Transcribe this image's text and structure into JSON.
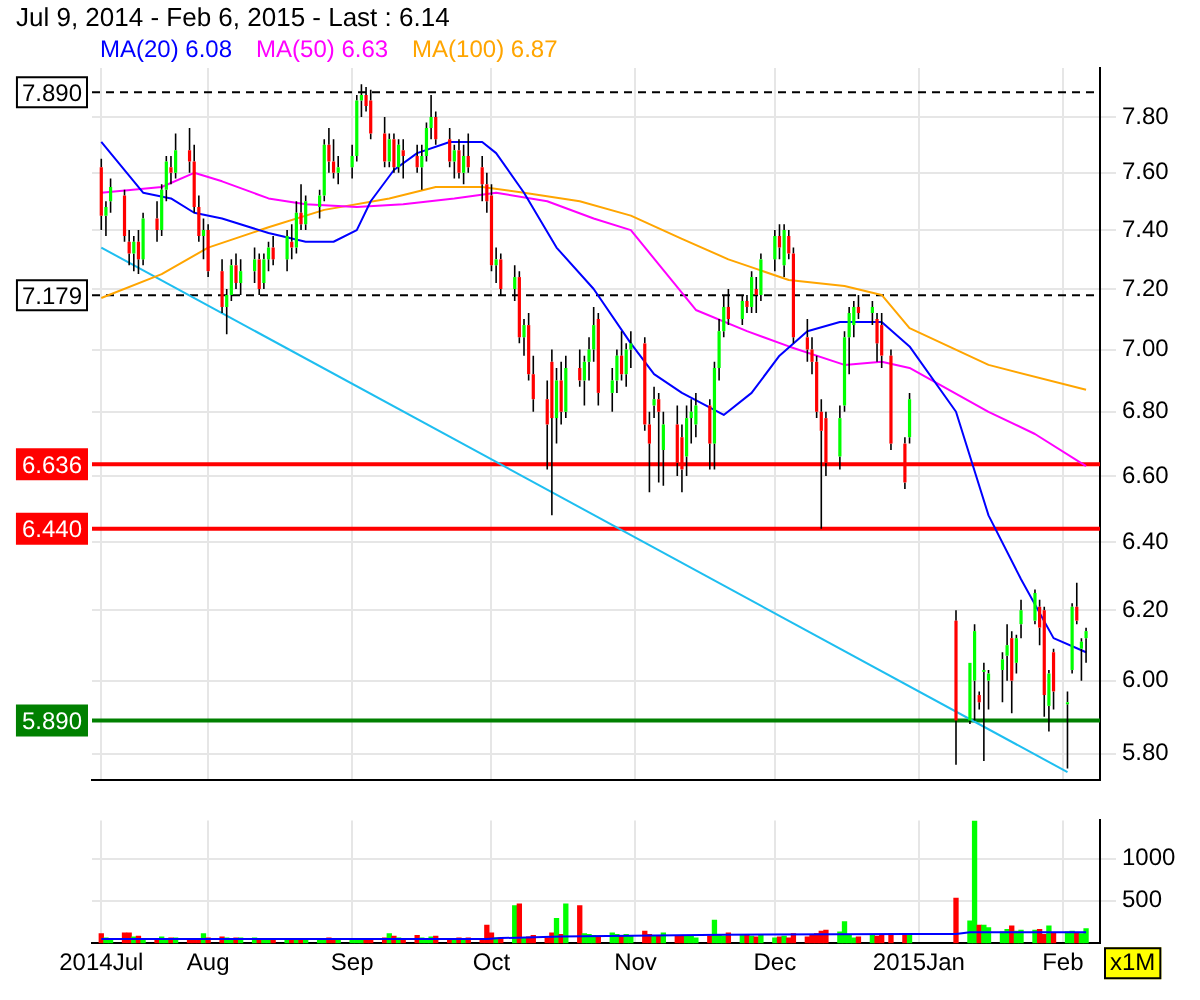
{
  "chart_data": [
    {
      "type": "candlestick",
      "title": "Jul 9, 2014 - Feb 6, 2015 - Last : 6.14",
      "log": true,
      "grid": true,
      "legend": "top left",
      "tick_labels": "y",
      "xlim": [
        "2014-07-07",
        "2015-02-09"
      ],
      "xticks": [
        {
          "value": "2014-07-09",
          "label": null
        },
        {
          "value": "2014-08-01",
          "label": null
        },
        {
          "value": "2014-09-01",
          "label": null
        },
        {
          "value": "2014-10-01",
          "label": null
        },
        {
          "value": "2014-11-01",
          "label": null
        },
        {
          "value": "2014-12-01",
          "label": null
        },
        {
          "value": "2015-01-01",
          "label": null
        },
        {
          "value": "2015-02-01",
          "label": null
        }
      ],
      "ylim": [
        5.73,
        7.98
      ],
      "yticks": [
        {
          "value": 5.8,
          "label": "5.80"
        },
        {
          "value": 6.0,
          "label": "6.00"
        },
        {
          "value": 6.2,
          "label": "6.20"
        },
        {
          "value": 6.4,
          "label": "6.40"
        },
        {
          "value": 6.6,
          "label": "6.60"
        },
        {
          "value": 6.8,
          "label": "6.80"
        },
        {
          "value": 7.0,
          "label": "7.00"
        },
        {
          "value": 7.2,
          "label": "7.20"
        },
        {
          "value": 7.4,
          "label": "7.40"
        },
        {
          "value": 7.6,
          "label": "7.60"
        },
        {
          "value": 7.8,
          "label": "7.80"
        }
      ],
      "x": [
        "2014-07-09",
        "2014-07-10",
        "2014-07-11",
        "2014-07-14",
        "2014-07-15",
        "2014-07-16",
        "2014-07-17",
        "2014-07-18",
        "2014-07-21",
        "2014-07-22",
        "2014-07-23",
        "2014-07-24",
        "2014-07-25",
        "2014-07-28",
        "2014-07-29",
        "2014-07-30",
        "2014-07-31",
        "2014-08-01",
        "2014-08-04",
        "2014-08-05",
        "2014-08-06",
        "2014-08-07",
        "2014-08-08",
        "2014-08-11",
        "2014-08-12",
        "2014-08-13",
        "2014-08-14",
        "2014-08-15",
        "2014-08-18",
        "2014-08-19",
        "2014-08-20",
        "2014-08-21",
        "2014-08-22",
        "2014-08-25",
        "2014-08-26",
        "2014-08-27",
        "2014-08-28",
        "2014-08-29",
        "2014-09-01",
        "2014-09-02",
        "2014-09-03",
        "2014-09-04",
        "2014-09-05",
        "2014-09-08",
        "2014-09-09",
        "2014-09-10",
        "2014-09-11",
        "2014-09-12",
        "2014-09-15",
        "2014-09-16",
        "2014-09-17",
        "2014-09-18",
        "2014-09-19",
        "2014-09-22",
        "2014-09-23",
        "2014-09-24",
        "2014-09-25",
        "2014-09-26",
        "2014-09-29",
        "2014-09-30",
        "2014-10-01",
        "2014-10-02",
        "2014-10-03",
        "2014-10-06",
        "2014-10-07",
        "2014-10-08",
        "2014-10-09",
        "2014-10-10",
        "2014-10-13",
        "2014-10-14",
        "2014-10-15",
        "2014-10-16",
        "2014-10-17",
        "2014-10-20",
        "2014-10-21",
        "2014-10-22",
        "2014-10-23",
        "2014-10-24",
        "2014-10-27",
        "2014-10-28",
        "2014-10-29",
        "2014-10-30",
        "2014-10-31",
        "2014-11-03",
        "2014-11-04",
        "2014-11-05",
        "2014-11-06",
        "2014-11-07",
        "2014-11-10",
        "2014-11-11",
        "2014-11-12",
        "2014-11-13",
        "2014-11-14",
        "2014-11-17",
        "2014-11-18",
        "2014-11-19",
        "2014-11-20",
        "2014-11-21",
        "2014-11-24",
        "2014-11-25",
        "2014-11-26",
        "2014-11-27",
        "2014-11-28",
        "2014-12-01",
        "2014-12-02",
        "2014-12-03",
        "2014-12-04",
        "2014-12-05",
        "2014-12-08",
        "2014-12-09",
        "2014-12-10",
        "2014-12-11",
        "2014-12-12",
        "2014-12-15",
        "2014-12-16",
        "2014-12-17",
        "2014-12-18",
        "2014-12-19",
        "2014-12-22",
        "2014-12-23",
        "2014-12-24",
        "2014-12-26",
        "2014-12-29",
        "2014-12-30",
        "2015-01-09",
        "2015-01-12",
        "2015-01-13",
        "2015-01-14",
        "2015-01-15",
        "2015-01-16",
        "2015-01-19",
        "2015-01-20",
        "2015-01-21",
        "2015-01-22",
        "2015-01-23",
        "2015-01-26",
        "2015-01-27",
        "2015-01-28",
        "2015-01-29",
        "2015-01-30",
        "2015-02-02",
        "2015-02-03",
        "2015-02-04",
        "2015-02-05",
        "2015-02-06"
      ],
      "series": [
        {
          "ohlc": [
            [
              7.62,
              7.65,
              7.4,
              7.45
            ],
            [
              7.45,
              7.5,
              7.38,
              7.48
            ],
            [
              7.5,
              7.58,
              7.46,
              7.55
            ],
            [
              7.52,
              7.54,
              7.36,
              7.38
            ],
            [
              7.36,
              7.4,
              7.28,
              7.32
            ],
            [
              7.32,
              7.38,
              7.26,
              7.36
            ],
            [
              7.36,
              7.4,
              7.25,
              7.3
            ],
            [
              7.3,
              7.46,
              7.28,
              7.44
            ],
            [
              7.44,
              7.5,
              7.36,
              7.4
            ],
            [
              7.4,
              7.56,
              7.38,
              7.54
            ],
            [
              7.54,
              7.66,
              7.5,
              7.64
            ],
            [
              7.62,
              7.66,
              7.56,
              7.6
            ],
            [
              7.6,
              7.74,
              7.58,
              7.68
            ],
            [
              7.68,
              7.76,
              7.6,
              7.64
            ],
            [
              7.64,
              7.7,
              7.46,
              7.48
            ],
            [
              7.48,
              7.52,
              7.36,
              7.38
            ],
            [
              7.38,
              7.44,
              7.3,
              7.4
            ],
            [
              7.4,
              7.42,
              7.24,
              7.26
            ],
            [
              7.26,
              7.3,
              7.12,
              7.14
            ],
            [
              7.14,
              7.2,
              7.05,
              7.18
            ],
            [
              7.18,
              7.3,
              7.16,
              7.28
            ],
            [
              7.28,
              7.32,
              7.2,
              7.22
            ],
            [
              7.22,
              7.3,
              7.18,
              7.26
            ],
            [
              7.26,
              7.34,
              7.22,
              7.3
            ],
            [
              7.3,
              7.32,
              7.18,
              7.2
            ],
            [
              7.22,
              7.32,
              7.2,
              7.3
            ],
            [
              7.3,
              7.36,
              7.26,
              7.34
            ],
            [
              7.34,
              7.38,
              7.28,
              7.3
            ],
            [
              7.3,
              7.4,
              7.26,
              7.38
            ],
            [
              7.36,
              7.42,
              7.3,
              7.34
            ],
            [
              7.34,
              7.5,
              7.32,
              7.46
            ],
            [
              7.46,
              7.56,
              7.4,
              7.42
            ],
            [
              7.42,
              7.52,
              7.4,
              7.5
            ],
            [
              7.48,
              7.54,
              7.44,
              7.52
            ],
            [
              7.52,
              7.72,
              7.5,
              7.7
            ],
            [
              7.7,
              7.76,
              7.6,
              7.64
            ],
            [
              7.64,
              7.72,
              7.58,
              7.6
            ],
            [
              7.6,
              7.66,
              7.56,
              7.62
            ],
            [
              7.62,
              7.7,
              7.58,
              7.66
            ],
            [
              7.66,
              7.88,
              7.64,
              7.86
            ],
            [
              7.86,
              7.92,
              7.8,
              7.88
            ],
            [
              7.88,
              7.91,
              7.82,
              7.84
            ],
            [
              7.86,
              7.9,
              7.72,
              7.74
            ],
            [
              7.74,
              7.8,
              7.62,
              7.64
            ],
            [
              7.64,
              7.74,
              7.62,
              7.72
            ],
            [
              7.72,
              7.74,
              7.6,
              7.62
            ],
            [
              7.62,
              7.72,
              7.6,
              7.7
            ],
            [
              7.68,
              7.72,
              7.58,
              7.66
            ],
            [
              7.66,
              7.7,
              7.6,
              7.62
            ],
            [
              7.62,
              7.7,
              7.54,
              7.66
            ],
            [
              7.66,
              7.78,
              7.64,
              7.76
            ],
            [
              7.76,
              7.88,
              7.72,
              7.8
            ],
            [
              7.8,
              7.82,
              7.7,
              7.72
            ],
            [
              7.72,
              7.76,
              7.62,
              7.64
            ],
            [
              7.64,
              7.7,
              7.58,
              7.68
            ],
            [
              7.68,
              7.72,
              7.58,
              7.6
            ],
            [
              7.6,
              7.7,
              7.56,
              7.66
            ],
            [
              7.66,
              7.74,
              7.6,
              7.62
            ],
            [
              7.62,
              7.66,
              7.5,
              7.56
            ],
            [
              7.56,
              7.6,
              7.46,
              7.5
            ],
            [
              7.52,
              7.56,
              7.26,
              7.28
            ],
            [
              7.28,
              7.34,
              7.22,
              7.3
            ],
            [
              7.3,
              7.32,
              7.18,
              7.2
            ],
            [
              7.2,
              7.28,
              7.16,
              7.24
            ],
            [
              7.24,
              7.26,
              7.02,
              7.04
            ],
            [
              7.04,
              7.1,
              6.98,
              7.08
            ],
            [
              7.08,
              7.12,
              6.9,
              6.92
            ],
            [
              6.92,
              6.98,
              6.8,
              6.84
            ],
            [
              6.84,
              6.9,
              6.62,
              6.76
            ],
            [
              6.96,
              7.0,
              6.48,
              6.78
            ],
            [
              6.78,
              6.94,
              6.7,
              6.9
            ],
            [
              6.9,
              6.96,
              6.76,
              6.8
            ],
            [
              6.8,
              6.98,
              6.78,
              6.94
            ],
            [
              6.94,
              7.0,
              6.88,
              6.9
            ],
            [
              6.9,
              6.98,
              6.82,
              6.96
            ],
            [
              6.96,
              7.04,
              6.9,
              7.0
            ],
            [
              7.0,
              7.14,
              6.96,
              7.08
            ],
            [
              7.1,
              7.12,
              6.82,
              6.86
            ],
            [
              6.86,
              6.94,
              6.8,
              6.9
            ],
            [
              6.9,
              7.0,
              6.86,
              6.98
            ],
            [
              6.98,
              7.06,
              6.9,
              6.92
            ],
            [
              6.92,
              7.02,
              6.88,
              7.0
            ],
            [
              7.0,
              7.06,
              6.94,
              7.02
            ],
            [
              7.02,
              7.04,
              6.74,
              6.76
            ],
            [
              6.76,
              6.8,
              6.55,
              6.7
            ],
            [
              6.82,
              6.88,
              6.78,
              6.84
            ],
            [
              6.84,
              6.86,
              6.58,
              6.8
            ],
            [
              6.68,
              6.8,
              6.57,
              6.76
            ],
            [
              6.76,
              6.82,
              6.6,
              6.64
            ],
            [
              6.72,
              6.76,
              6.55,
              6.62
            ],
            [
              6.66,
              6.82,
              6.6,
              6.78
            ],
            [
              6.78,
              6.84,
              6.7,
              6.8
            ],
            [
              6.76,
              6.86,
              6.72,
              6.82
            ],
            [
              6.82,
              6.84,
              6.62,
              6.7
            ],
            [
              6.7,
              6.96,
              6.62,
              6.94
            ],
            [
              6.94,
              7.1,
              6.9,
              7.06
            ],
            [
              7.06,
              7.18,
              7.04,
              7.14
            ],
            [
              7.14,
              7.2,
              7.08,
              7.1
            ],
            [
              7.1,
              7.18,
              7.08,
              7.16
            ],
            [
              7.16,
              7.18,
              7.12,
              7.14
            ],
            [
              7.14,
              7.26,
              7.12,
              7.24
            ],
            [
              7.2,
              7.24,
              7.12,
              7.18
            ],
            [
              7.18,
              7.32,
              7.16,
              7.3
            ],
            [
              7.3,
              7.4,
              7.26,
              7.38
            ],
            [
              7.38,
              7.42,
              7.3,
              7.34
            ],
            [
              7.28,
              7.42,
              7.24,
              7.4
            ],
            [
              7.38,
              7.4,
              7.3,
              7.32
            ],
            [
              7.32,
              7.34,
              7.02,
              7.04
            ],
            [
              7.04,
              7.1,
              6.96,
              7.0
            ],
            [
              7.0,
              7.04,
              6.92,
              6.96
            ],
            [
              6.96,
              6.98,
              6.78,
              6.8
            ],
            [
              6.8,
              6.84,
              6.44,
              6.74
            ],
            [
              6.78,
              6.8,
              6.6,
              6.64
            ],
            [
              6.66,
              6.82,
              6.62,
              6.78
            ],
            [
              6.82,
              7.06,
              6.8,
              7.04
            ],
            [
              7.04,
              7.14,
              6.92,
              7.12
            ],
            [
              7.08,
              7.16,
              7.04,
              7.14
            ],
            [
              7.14,
              7.18,
              7.1,
              7.12
            ],
            [
              7.12,
              7.16,
              7.08,
              7.14
            ],
            [
              7.1,
              7.12,
              6.96,
              7.02
            ],
            [
              7.08,
              7.12,
              6.94,
              6.98
            ],
            [
              6.98,
              7.0,
              6.68,
              6.7
            ],
            [
              6.7,
              6.72,
              6.56,
              6.58
            ],
            [
              6.72,
              6.86,
              6.7,
              6.84
            ],
            [
              6.17,
              6.2,
              5.77,
              5.89
            ],
            [
              5.89,
              6.05,
              5.88,
              6.05
            ],
            [
              6.0,
              6.16,
              5.89,
              6.14
            ],
            [
              5.96,
              5.97,
              5.92,
              5.94
            ],
            [
              6.03,
              6.05,
              5.78,
              6.03
            ],
            [
              6.0,
              6.03,
              5.92,
              6.02
            ],
            [
              6.03,
              6.08,
              5.94,
              6.06
            ],
            [
              6.07,
              6.16,
              6.0,
              6.1
            ],
            [
              6.12,
              6.14,
              5.91,
              6.0
            ],
            [
              6.05,
              6.13,
              6.02,
              6.12
            ],
            [
              6.16,
              6.23,
              6.12,
              6.2
            ],
            [
              6.17,
              6.26,
              6.16,
              6.25
            ],
            [
              6.21,
              6.23,
              6.1,
              6.15
            ],
            [
              6.2,
              6.21,
              5.9,
              5.96
            ],
            [
              5.93,
              6.03,
              5.86,
              6.02
            ],
            [
              6.08,
              6.09,
              5.92,
              5.97
            ],
            [
              5.94,
              5.97,
              5.76,
              5.94
            ],
            [
              6.03,
              6.22,
              6.02,
              6.21
            ],
            [
              6.21,
              6.28,
              6.16,
              6.17
            ],
            [
              6.09,
              6.12,
              6.0,
              6.11
            ],
            [
              6.12,
              6.15,
              6.05,
              6.14
            ]
          ],
          "colors": [
            "#ff0000",
            "#00ff00",
            "#00ff00",
            "#ff0000",
            "#ff0000",
            "#00ff00",
            "#ff0000",
            "#00ff00",
            "#ff0000",
            "#00ff00",
            "#00ff00",
            "#ff0000",
            "#00ff00",
            "#ff0000",
            "#ff0000",
            "#ff0000",
            "#00ff00",
            "#ff0000",
            "#ff0000",
            "#00ff00",
            "#00ff00",
            "#ff0000",
            "#00ff00",
            "#00ff00",
            "#ff0000",
            "#00ff00",
            "#00ff00",
            "#ff0000",
            "#00ff00",
            "#ff0000",
            "#00ff00",
            "#ff0000",
            "#00ff00",
            "#00ff00",
            "#00ff00",
            "#ff0000",
            "#ff0000",
            "#00ff00",
            "#00ff00",
            "#00ff00",
            "#00ff00",
            "#ff0000",
            "#ff0000",
            "#ff0000",
            "#00ff00",
            "#ff0000",
            "#00ff00",
            "#ff0000",
            "#ff0000",
            "#00ff00",
            "#00ff00",
            "#00ff00",
            "#ff0000",
            "#ff0000",
            "#00ff00",
            "#ff0000",
            "#00ff00",
            "#ff0000",
            "#ff0000",
            "#ff0000",
            "#ff0000",
            "#00ff00",
            "#ff0000",
            "#00ff00",
            "#ff0000",
            "#00ff00",
            "#ff0000",
            "#ff0000",
            "#ff0000",
            "#ff0000",
            "#00ff00",
            "#ff0000",
            "#00ff00",
            "#ff0000",
            "#00ff00",
            "#00ff00",
            "#00ff00",
            "#ff0000",
            "#00ff00",
            "#00ff00",
            "#ff0000",
            "#00ff00",
            "#00ff00",
            "#ff0000",
            "#ff0000",
            "#00ff00",
            "#ff0000",
            "#00ff00",
            "#ff0000",
            "#ff0000",
            "#00ff00",
            "#00ff00",
            "#00ff00",
            "#ff0000",
            "#00ff00",
            "#00ff00",
            "#00ff00",
            "#ff0000",
            "#00ff00",
            "#ff0000",
            "#00ff00",
            "#ff0000",
            "#00ff00",
            "#00ff00",
            "#ff0000",
            "#00ff00",
            "#ff0000",
            "#ff0000",
            "#ff0000",
            "#ff0000",
            "#ff0000",
            "#ff0000",
            "#ff0000",
            "#00ff00",
            "#00ff00",
            "#00ff00",
            "#00ff00",
            "#ff0000",
            "#00ff00",
            "#ff0000",
            "#ff0000",
            "#ff0000",
            "#ff0000",
            "#00ff00",
            "#ff0000",
            "#00ff00",
            "#00ff00",
            "#ff0000",
            "#00ff00",
            "#00ff00",
            "#00ff00",
            "#00ff00",
            "#ff0000",
            "#00ff00",
            "#00ff00",
            "#00ff00",
            "#ff0000",
            "#ff0000",
            "#00ff00",
            "#ff0000",
            "#00ff00",
            "#00ff00",
            "#ff0000",
            "#00ff00",
            "#00ff00"
          ]
        },
        {
          "type": "line",
          "name": "MA(20) 6.08",
          "color": "#0000ff",
          "x": [
            "2014-07-09",
            "2014-07-18",
            "2014-07-24",
            "2014-07-29",
            "2014-08-04",
            "2014-08-14",
            "2014-08-22",
            "2014-08-28",
            "2014-09-02",
            "2014-09-05",
            "2014-09-10",
            "2014-09-15",
            "2014-09-22",
            "2014-09-29",
            "2014-10-02",
            "2014-10-08",
            "2014-10-15",
            "2014-10-23",
            "2014-10-31",
            "2014-11-05",
            "2014-11-11",
            "2014-11-20",
            "2014-11-26",
            "2014-12-02",
            "2014-12-08",
            "2014-12-15",
            "2014-12-24",
            "2014-12-30",
            "2015-01-09",
            "2015-01-16",
            "2015-01-23",
            "2015-01-30",
            "2015-02-06"
          ],
          "values": [
            7.71,
            7.53,
            7.51,
            7.46,
            7.44,
            7.39,
            7.36,
            7.36,
            7.4,
            7.5,
            7.61,
            7.67,
            7.71,
            7.71,
            7.67,
            7.53,
            7.34,
            7.2,
            7.02,
            6.92,
            6.86,
            6.79,
            6.86,
            6.98,
            7.06,
            7.09,
            7.09,
            7.01,
            6.8,
            6.48,
            6.29,
            6.12,
            6.08
          ]
        },
        {
          "type": "line",
          "name": "MA(50) 6.63",
          "color": "#ff00ff",
          "x": [
            "2014-07-09",
            "2014-07-22",
            "2014-07-29",
            "2014-08-04",
            "2014-08-14",
            "2014-08-22",
            "2014-09-02",
            "2014-09-12",
            "2014-09-23",
            "2014-10-02",
            "2014-10-13",
            "2014-10-23",
            "2014-10-31",
            "2014-11-14",
            "2014-11-25",
            "2014-12-04",
            "2014-12-16",
            "2014-12-24",
            "2014-12-30",
            "2015-01-16",
            "2015-01-26",
            "2015-02-06"
          ],
          "values": [
            7.53,
            7.55,
            7.6,
            7.57,
            7.51,
            7.49,
            7.48,
            7.49,
            7.51,
            7.53,
            7.5,
            7.44,
            7.4,
            7.13,
            7.06,
            7.01,
            6.95,
            6.96,
            6.94,
            6.8,
            6.73,
            6.63
          ]
        },
        {
          "type": "line",
          "name": "MA(100) 6.87",
          "color": "#ffa500",
          "x": [
            "2014-07-09",
            "2014-07-22",
            "2014-08-01",
            "2014-08-14",
            "2014-08-26",
            "2014-09-09",
            "2014-09-19",
            "2014-09-29",
            "2014-10-08",
            "2014-10-20",
            "2014-10-31",
            "2014-11-11",
            "2014-11-21",
            "2014-12-04",
            "2014-12-16",
            "2014-12-24",
            "2014-12-30",
            "2015-01-16",
            "2015-02-06"
          ],
          "values": [
            7.17,
            7.25,
            7.34,
            7.41,
            7.47,
            7.51,
            7.55,
            7.55,
            7.53,
            7.5,
            7.45,
            7.37,
            7.3,
            7.23,
            7.21,
            7.18,
            7.07,
            6.95,
            6.87
          ]
        },
        {
          "type": "line",
          "color": "#1ebef0",
          "x": [
            "2014-07-09",
            "2015-02-02"
          ],
          "values": [
            7.34,
            5.75
          ]
        }
      ],
      "ref_lines": [
        {
          "axis": "y",
          "value": 7.89,
          "label": "7.890",
          "color": "#000000",
          "line_style": "dashed"
        },
        {
          "axis": "y",
          "value": 7.179,
          "label": "7.179",
          "color": "#000000",
          "line_style": "dashed"
        },
        {
          "axis": "y",
          "value": 6.636,
          "label": "6.636",
          "color": "#ff0000",
          "line_style": "solid"
        },
        {
          "axis": "y",
          "value": 6.44,
          "label": "6.440",
          "color": "#ff0000",
          "line_style": "solid"
        },
        {
          "axis": "y",
          "value": 5.89,
          "label": "5.890",
          "color": "#008000",
          "line_style": "solid"
        }
      ]
    },
    {
      "type": "bar",
      "grid": true,
      "ylabel": "x1M",
      "xlim": [
        "2014-07-07",
        "2015-02-09"
      ],
      "xticks": [
        {
          "value": "2014-07-09",
          "label": "2014Jul"
        },
        {
          "value": "2014-08-01",
          "label": "Aug"
        },
        {
          "value": "2014-09-01",
          "label": "Sep"
        },
        {
          "value": "2014-10-01",
          "label": "Oct"
        },
        {
          "value": "2014-11-01",
          "label": "Nov"
        },
        {
          "value": "2014-12-01",
          "label": "Dec"
        },
        {
          "value": "2015-01-01",
          "label": "2015Jan"
        },
        {
          "value": "2015-02-01",
          "label": "Feb"
        }
      ],
      "ylim": [
        0,
        1450
      ],
      "yticks": [
        500,
        1000
      ],
      "x": [
        "2014-07-09",
        "2014-07-10",
        "2014-07-11",
        "2014-07-14",
        "2014-07-15",
        "2014-07-16",
        "2014-07-17",
        "2014-07-18",
        "2014-07-21",
        "2014-07-22",
        "2014-07-23",
        "2014-07-24",
        "2014-07-25",
        "2014-07-28",
        "2014-07-29",
        "2014-07-30",
        "2014-07-31",
        "2014-08-01",
        "2014-08-04",
        "2014-08-05",
        "2014-08-06",
        "2014-08-07",
        "2014-08-08",
        "2014-08-11",
        "2014-08-12",
        "2014-08-13",
        "2014-08-14",
        "2014-08-15",
        "2014-08-18",
        "2014-08-19",
        "2014-08-20",
        "2014-08-21",
        "2014-08-22",
        "2014-08-25",
        "2014-08-26",
        "2014-08-27",
        "2014-08-28",
        "2014-08-29",
        "2014-09-01",
        "2014-09-02",
        "2014-09-03",
        "2014-09-04",
        "2014-09-05",
        "2014-09-08",
        "2014-09-09",
        "2014-09-10",
        "2014-09-11",
        "2014-09-12",
        "2014-09-15",
        "2014-09-16",
        "2014-09-17",
        "2014-09-18",
        "2014-09-19",
        "2014-09-22",
        "2014-09-23",
        "2014-09-24",
        "2014-09-25",
        "2014-09-26",
        "2014-09-29",
        "2014-09-30",
        "2014-10-01",
        "2014-10-02",
        "2014-10-03",
        "2014-10-06",
        "2014-10-07",
        "2014-10-08",
        "2014-10-09",
        "2014-10-10",
        "2014-10-13",
        "2014-10-14",
        "2014-10-15",
        "2014-10-16",
        "2014-10-17",
        "2014-10-20",
        "2014-10-21",
        "2014-10-22",
        "2014-10-23",
        "2014-10-24",
        "2014-10-27",
        "2014-10-28",
        "2014-10-29",
        "2014-10-30",
        "2014-10-31",
        "2014-11-03",
        "2014-11-04",
        "2014-11-05",
        "2014-11-06",
        "2014-11-07",
        "2014-11-10",
        "2014-11-11",
        "2014-11-12",
        "2014-11-13",
        "2014-11-14",
        "2014-11-17",
        "2014-11-18",
        "2014-11-19",
        "2014-11-20",
        "2014-11-21",
        "2014-11-24",
        "2014-11-25",
        "2014-11-26",
        "2014-11-27",
        "2014-11-28",
        "2014-12-01",
        "2014-12-02",
        "2014-12-03",
        "2014-12-04",
        "2014-12-05",
        "2014-12-08",
        "2014-12-09",
        "2014-12-10",
        "2014-12-11",
        "2014-12-12",
        "2014-12-15",
        "2014-12-16",
        "2014-12-17",
        "2014-12-18",
        "2014-12-19",
        "2014-12-22",
        "2014-12-23",
        "2014-12-24",
        "2014-12-26",
        "2014-12-29",
        "2014-12-30",
        "2015-01-09",
        "2015-01-12",
        "2015-01-13",
        "2015-01-14",
        "2015-01-15",
        "2015-01-16",
        "2015-01-19",
        "2015-01-20",
        "2015-01-21",
        "2015-01-22",
        "2015-01-23",
        "2015-01-26",
        "2015-01-27",
        "2015-01-28",
        "2015-01-29",
        "2015-01-30",
        "2015-02-02",
        "2015-02-03",
        "2015-02-04",
        "2015-02-05",
        "2015-02-06"
      ],
      "series": [
        {
          "values": [
            110,
            60,
            50,
            120,
            120,
            70,
            80,
            50,
            50,
            70,
            50,
            60,
            60,
            40,
            40,
            50,
            110,
            60,
            70,
            60,
            50,
            60,
            60,
            60,
            50,
            50,
            40,
            40,
            40,
            40,
            50,
            50,
            50,
            40,
            40,
            60,
            50,
            40,
            40,
            40,
            50,
            40,
            40,
            60,
            110,
            80,
            60,
            50,
            90,
            60,
            40,
            70,
            80,
            50,
            50,
            60,
            40,
            60,
            50,
            210,
            120,
            60,
            60,
            440,
            460,
            60,
            70,
            90,
            60,
            120,
            290,
            100,
            460,
            440,
            110,
            100,
            90,
            80,
            120,
            100,
            80,
            100,
            90,
            140,
            100,
            90,
            90,
            120,
            80,
            90,
            90,
            80,
            60,
            80,
            270,
            100,
            80,
            120,
            100,
            90,
            80,
            70,
            90,
            60,
            70,
            80,
            60,
            110,
            70,
            90,
            110,
            140,
            150,
            130,
            250,
            100,
            60,
            70,
            90,
            80,
            100,
            110,
            90,
            100,
            530,
            260,
            1440,
            210,
            210,
            180,
            130,
            160,
            200,
            140,
            150,
            150,
            160,
            100,
            200,
            120,
            130,
            140,
            120,
            110,
            170
          ],
          "colors": [
            "#ff0000",
            "#00ff00",
            "#00ff00",
            "#ff0000",
            "#ff0000",
            "#00ff00",
            "#ff0000",
            "#00ff00",
            "#ff0000",
            "#00ff00",
            "#00ff00",
            "#ff0000",
            "#00ff00",
            "#ff0000",
            "#ff0000",
            "#ff0000",
            "#00ff00",
            "#ff0000",
            "#ff0000",
            "#00ff00",
            "#00ff00",
            "#ff0000",
            "#00ff00",
            "#00ff00",
            "#ff0000",
            "#00ff00",
            "#00ff00",
            "#ff0000",
            "#00ff00",
            "#ff0000",
            "#00ff00",
            "#ff0000",
            "#00ff00",
            "#00ff00",
            "#00ff00",
            "#ff0000",
            "#ff0000",
            "#00ff00",
            "#00ff00",
            "#00ff00",
            "#00ff00",
            "#ff0000",
            "#ff0000",
            "#ff0000",
            "#00ff00",
            "#ff0000",
            "#00ff00",
            "#ff0000",
            "#ff0000",
            "#00ff00",
            "#00ff00",
            "#00ff00",
            "#ff0000",
            "#ff0000",
            "#00ff00",
            "#ff0000",
            "#00ff00",
            "#ff0000",
            "#ff0000",
            "#ff0000",
            "#ff0000",
            "#00ff00",
            "#ff0000",
            "#00ff00",
            "#ff0000",
            "#00ff00",
            "#ff0000",
            "#ff0000",
            "#ff0000",
            "#ff0000",
            "#00ff00",
            "#ff0000",
            "#00ff00",
            "#ff0000",
            "#00ff00",
            "#00ff00",
            "#00ff00",
            "#ff0000",
            "#00ff00",
            "#00ff00",
            "#ff0000",
            "#00ff00",
            "#00ff00",
            "#ff0000",
            "#ff0000",
            "#00ff00",
            "#ff0000",
            "#00ff00",
            "#ff0000",
            "#ff0000",
            "#00ff00",
            "#00ff00",
            "#00ff00",
            "#ff0000",
            "#00ff00",
            "#00ff00",
            "#00ff00",
            "#ff0000",
            "#00ff00",
            "#ff0000",
            "#00ff00",
            "#ff0000",
            "#00ff00",
            "#00ff00",
            "#ff0000",
            "#00ff00",
            "#ff0000",
            "#ff0000",
            "#ff0000",
            "#ff0000",
            "#ff0000",
            "#ff0000",
            "#ff0000",
            "#00ff00",
            "#00ff00",
            "#00ff00",
            "#00ff00",
            "#ff0000",
            "#00ff00",
            "#ff0000",
            "#ff0000",
            "#ff0000",
            "#ff0000",
            "#00ff00",
            "#ff0000",
            "#00ff00",
            "#00ff00",
            "#ff0000",
            "#00ff00",
            "#00ff00",
            "#00ff00",
            "#00ff00",
            "#ff0000",
            "#00ff00",
            "#00ff00",
            "#00ff00",
            "#ff0000",
            "#ff0000",
            "#00ff00",
            "#ff0000",
            "#00ff00",
            "#00ff00",
            "#ff0000",
            "#00ff00",
            "#00ff00"
          ]
        },
        {
          "type": "line",
          "color": "#0000ff",
          "x": [
            "2014-07-09",
            "2014-09-30",
            "2014-10-03",
            "2014-10-16",
            "2014-11-20",
            "2014-12-30",
            "2015-01-09",
            "2015-01-12",
            "2015-02-06"
          ],
          "values": [
            50,
            50,
            60,
            80,
            100,
            110,
            110,
            130,
            130
          ]
        }
      ]
    }
  ]
}
